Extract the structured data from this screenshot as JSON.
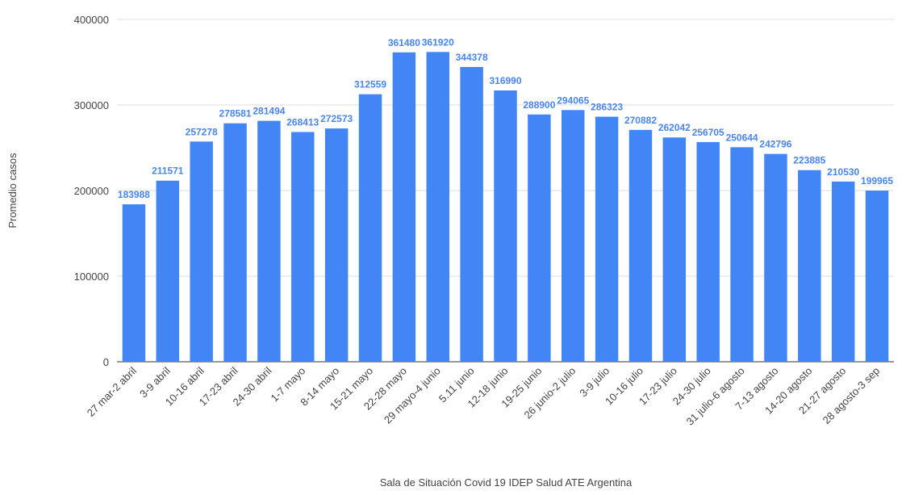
{
  "chart_data": {
    "type": "bar",
    "x_label": "Sala de Situación Covid 19 IDEP Salud ATE Argentina",
    "y_label": "Promedio casos",
    "categories": [
      "27 mar-2 abril",
      "3-9 abril",
      "10-16 abril",
      "17-23 abril",
      "24-30 abril",
      "1-7 mayo",
      "8-14 mayo",
      "15-21 mayo",
      "22-28 mayo",
      "29 mayo-4 junio",
      "5.11 junio",
      "12-18 junio",
      "19-25 junio",
      "26 junio-2 julio",
      "3-9 julio",
      "10-16 julio",
      "17-23 julio",
      "24-30 julio",
      "31 julio-6 agosto",
      "7-13 agosto",
      "14-20 agosto",
      "21-27 agosto",
      "28 agosto-3 sep"
    ],
    "values": [
      183988,
      211571,
      257278,
      278581,
      281494,
      268413,
      272573,
      312559,
      361480,
      361920,
      344378,
      316990,
      288900,
      294065,
      286323,
      270882,
      262042,
      256705,
      250644,
      242796,
      223885,
      210530,
      199965
    ],
    "color": "#4285f4",
    "ylim": [
      0,
      400000
    ],
    "yticks": [
      0,
      100000,
      200000,
      300000,
      400000
    ],
    "grid": true
  }
}
